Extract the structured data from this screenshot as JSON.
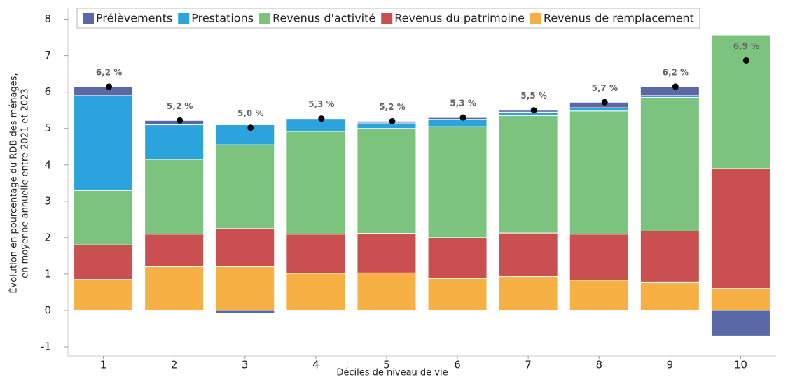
{
  "chart_data": {
    "type": "stacked-bar",
    "y_label": [
      "Évolution en pourcentage du RDB des ménages,",
      "en moyenne annuelle entre 2021 et 2023"
    ],
    "x_label": "Déciles de niveau de vie",
    "categories": [
      "1",
      "2",
      "3",
      "4",
      "5",
      "6",
      "7",
      "8",
      "9",
      "10"
    ],
    "series": [
      {
        "name": "Prélèvements",
        "color": "#5a68a6",
        "values": [
          0.25,
          0.12,
          -0.07,
          0,
          0.05,
          0.05,
          0.05,
          0.15,
          0.25,
          -0.7
        ]
      },
      {
        "name": "Prestations",
        "color": "#2ba3dc",
        "values": [
          2.6,
          0.95,
          0.55,
          0.35,
          0.15,
          0.2,
          0.1,
          0.09,
          0.05,
          0
        ]
      },
      {
        "name": "Revenus d'activité",
        "color": "#7cc47e",
        "values": [
          1.5,
          2.05,
          2.3,
          2.82,
          2.88,
          3.05,
          3.22,
          3.38,
          3.67,
          3.67
        ]
      },
      {
        "name": "Revenus du patrimoine",
        "color": "#c94f51",
        "values": [
          0.95,
          0.9,
          1.05,
          1.08,
          1.09,
          1.12,
          1.2,
          1.27,
          1.4,
          3.3
        ]
      },
      {
        "name": "Revenus de remplacement",
        "color": "#f7b043",
        "values": [
          0.85,
          1.2,
          1.2,
          1.02,
          1.03,
          0.88,
          0.93,
          0.83,
          0.78,
          0.6
        ]
      }
    ],
    "totals": {
      "color": "#000000",
      "values": [
        6.15,
        5.22,
        5.02,
        5.27,
        5.2,
        5.3,
        5.5,
        5.72,
        6.15,
        6.87
      ],
      "value_labels": [
        "6,2 %",
        "5,2 %",
        "5,0 %",
        "5,3 %",
        "5,2 %",
        "5,3 %",
        "5,5 %",
        "5,7 %",
        "6,2 %",
        "6,9 %"
      ]
    },
    "ylim": [
      -1.25,
      8.3
    ],
    "yticks": [
      -1,
      0,
      1,
      2,
      3,
      4,
      5,
      6,
      7,
      8
    ],
    "grid": false
  }
}
